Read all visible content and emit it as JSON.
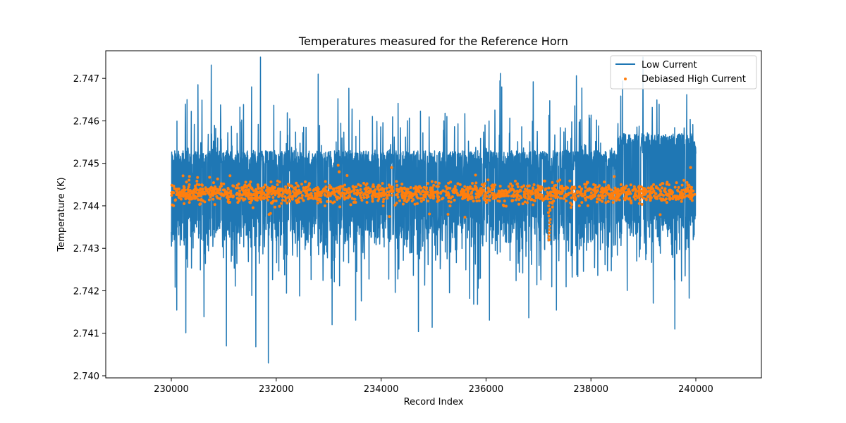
{
  "chart_data": {
    "type": "line",
    "title": "Temperatures measured for the Reference Horn",
    "xlabel": "Record Index",
    "ylabel": "Temperature (K)",
    "xlim": [
      228750,
      241250
    ],
    "ylim": [
      2.73995,
      2.74765
    ],
    "x_ticks": [
      230000,
      232000,
      234000,
      236000,
      238000,
      240000
    ],
    "x_tick_labels": [
      "230000",
      "232000",
      "234000",
      "236000",
      "238000",
      "240000"
    ],
    "y_ticks": [
      2.74,
      2.741,
      2.742,
      2.743,
      2.744,
      2.745,
      2.746,
      2.747
    ],
    "y_tick_labels": [
      "2.740",
      "2.741",
      "2.742",
      "2.743",
      "2.744",
      "2.745",
      "2.746",
      "2.747"
    ],
    "legend_position": "top-right",
    "series": [
      {
        "name": "Low Current",
        "kind": "line",
        "color": "#1f77b4",
        "x_range": [
          230000,
          240000
        ],
        "typical_band": [
          2.7435,
          2.7453
        ],
        "min": 2.7403,
        "max": 2.7475,
        "notable_points": [
          {
            "x": 231700,
            "y": 2.7475
          },
          {
            "x": 232800,
            "y": 2.7471
          },
          {
            "x": 231850,
            "y": 2.7403
          },
          {
            "x": 231050,
            "y": 2.7407
          },
          {
            "x": 239600,
            "y": 2.7411
          },
          {
            "x": 230300,
            "y": 2.7465
          },
          {
            "x": 236300,
            "y": 2.7468
          }
        ]
      },
      {
        "name": "Debiased High Current",
        "kind": "scatter",
        "color": "#ff7f0e",
        "x_range": [
          230000,
          240000
        ],
        "center": 2.7443,
        "typical_band": [
          2.744,
          2.7446
        ],
        "notable_points": [
          {
            "x": 233200,
            "y": 2.7448
          },
          {
            "x": 234200,
            "y": 2.7449
          },
          {
            "x": 237200,
            "y": 2.7432
          },
          {
            "x": 239900,
            "y": 2.7449
          }
        ]
      }
    ]
  }
}
